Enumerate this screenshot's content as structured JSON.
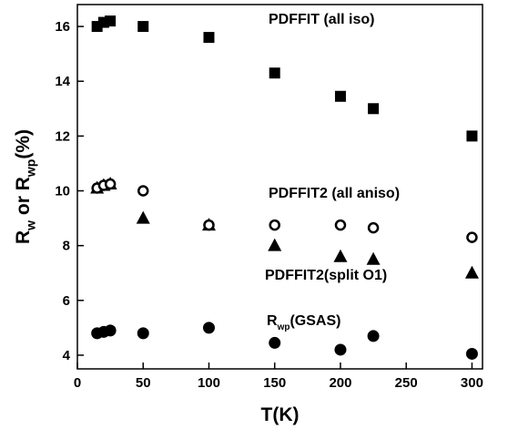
{
  "chart_data": {
    "type": "scatter",
    "xlabel": [
      {
        "text": "T(K)",
        "sub": false
      }
    ],
    "ylabel": [
      {
        "text": "R",
        "sub": false
      },
      {
        "text": "w",
        "sub": true
      },
      {
        "text": " or R",
        "sub": false
      },
      {
        "text": "wp",
        "sub": true
      },
      {
        "text": "(%)",
        "sub": false
      }
    ],
    "xlim": [
      0,
      308
    ],
    "ylim": [
      3.5,
      16.8
    ],
    "xticks": [
      0,
      50,
      100,
      150,
      200,
      250,
      300
    ],
    "yticks": [
      4,
      6,
      8,
      10,
      12,
      14,
      16
    ],
    "series": [
      {
        "label": [
          {
            "text": "PDFFIT (all iso)",
            "sub": false
          }
        ],
        "marker": "square",
        "color": "#000000",
        "x": [
          15,
          20,
          25,
          50,
          100,
          150,
          200,
          225,
          300
        ],
        "values": [
          16.0,
          16.15,
          16.2,
          16.0,
          15.6,
          14.3,
          13.45,
          13.0,
          12.0
        ]
      },
      {
        "label": [
          {
            "text": "PDFFIT2 (all aniso)",
            "sub": false
          }
        ],
        "marker": "circle-open",
        "color": "#000000",
        "x": [
          15,
          20,
          25,
          50,
          100,
          150,
          200,
          225,
          300
        ],
        "values": [
          10.1,
          10.2,
          10.25,
          10.0,
          8.75,
          8.75,
          8.75,
          8.65,
          8.3
        ]
      },
      {
        "label": [
          {
            "text": "PDFFIT2(split O1)",
            "sub": false
          }
        ],
        "marker": "triangle",
        "color": "#000000",
        "x": [
          15,
          20,
          25,
          50,
          100,
          150,
          200,
          225,
          300
        ],
        "values": [
          10.1,
          10.2,
          10.25,
          9.0,
          8.75,
          8.0,
          7.6,
          7.5,
          7.0
        ]
      },
      {
        "label": [
          {
            "text": "R",
            "sub": false
          },
          {
            "text": "wp",
            "sub": true
          },
          {
            "text": "(GSAS)",
            "sub": false
          }
        ],
        "marker": "circle",
        "color": "#000000",
        "x": [
          15,
          20,
          25,
          50,
          100,
          150,
          200,
          225,
          300
        ],
        "values": [
          4.8,
          4.85,
          4.9,
          4.8,
          5.0,
          4.45,
          4.2,
          4.7,
          4.05
        ]
      }
    ]
  }
}
